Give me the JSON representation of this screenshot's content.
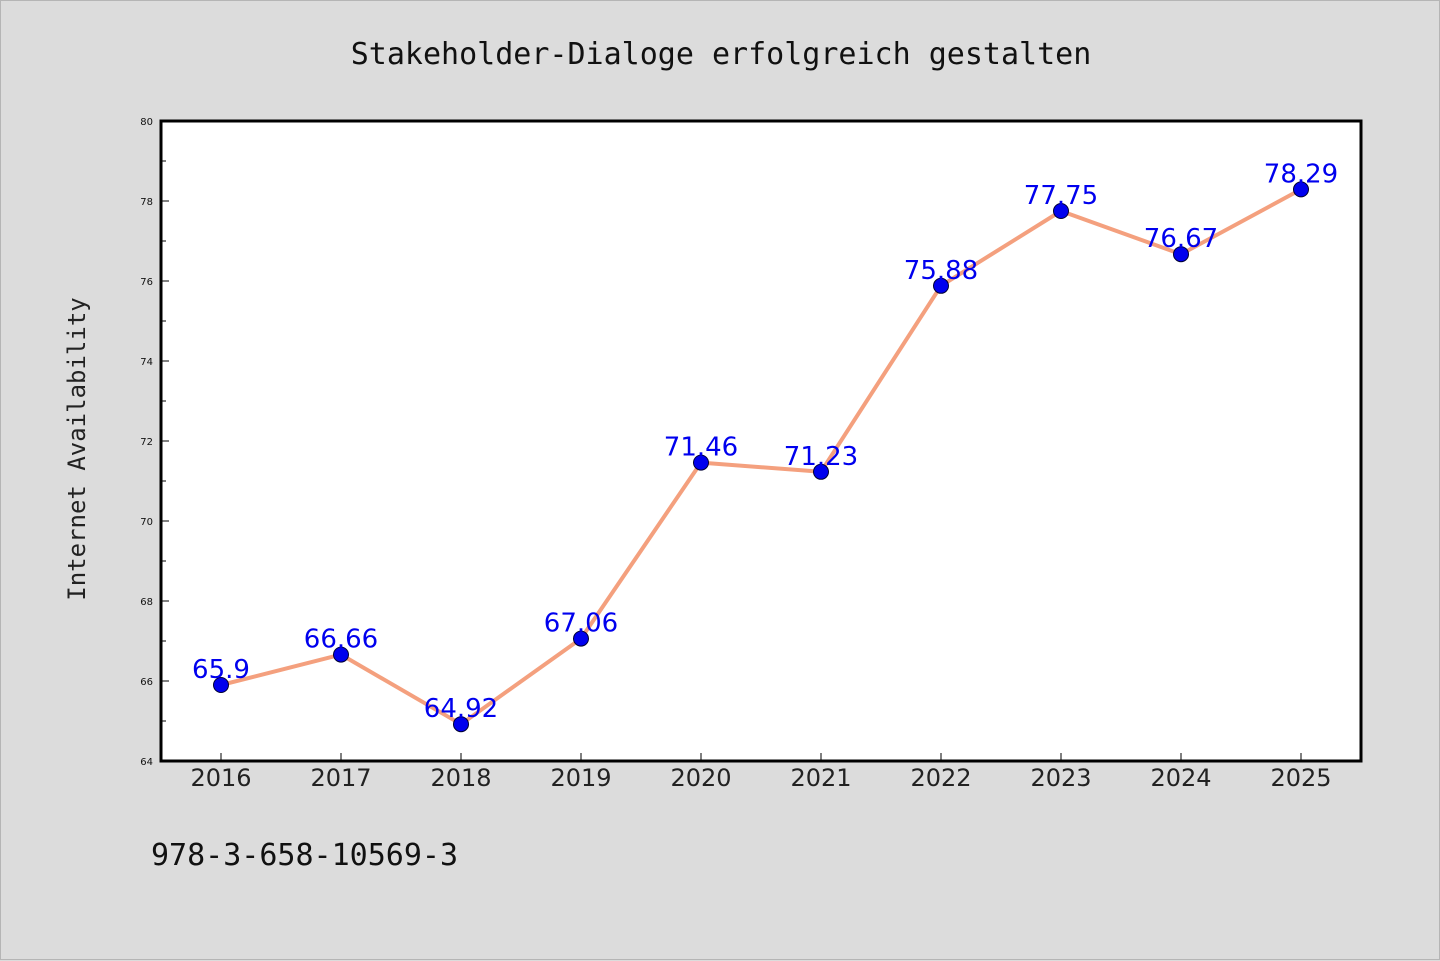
{
  "chart_data": {
    "type": "line",
    "title": "Stakeholder-Dialoge erfolgreich gestalten",
    "xlabel": "",
    "ylabel": "Internet Availability",
    "categories": [
      "2016",
      "2017",
      "2018",
      "2019",
      "2020",
      "2021",
      "2022",
      "2023",
      "2024",
      "2025"
    ],
    "series": [
      {
        "values": [
          65.9,
          66.66,
          64.92,
          67.06,
          71.46,
          71.23,
          75.88,
          77.75,
          76.67,
          78.29
        ],
        "labels": [
          "65.9",
          "66.66",
          "64.92",
          "67.06",
          "71.46",
          "71.23",
          "75.88",
          "77.75",
          "76.67",
          "78.29"
        ]
      }
    ],
    "ylim": [
      64,
      80
    ],
    "yticks": [
      "64",
      "66",
      "68",
      "70",
      "72",
      "74",
      "76",
      "78",
      "80"
    ],
    "grid": false,
    "legend": "none",
    "colors": {
      "line": "#f4a07e",
      "marker": "#0000ee",
      "label": "#0000ee",
      "background": "#dcdcdc",
      "plot_background": "#ffffff"
    }
  },
  "footer": {
    "isbn": "978-3-658-10569-3"
  }
}
